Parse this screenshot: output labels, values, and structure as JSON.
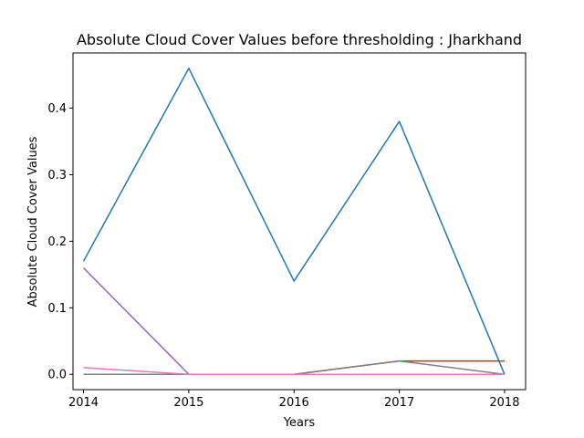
{
  "chart_data": {
    "type": "line",
    "title": "Absolute Cloud Cover Values before thresholding : Jharkhand",
    "xlabel": "Years",
    "ylabel": "Absolute Cloud Cover Values",
    "x": [
      2014,
      2015,
      2016,
      2017,
      2018
    ],
    "xlim": [
      2013.9,
      2018.2
    ],
    "ylim": [
      -0.023,
      0.483
    ],
    "yticks": [
      0.0,
      0.1,
      0.2,
      0.3,
      0.4
    ],
    "ytick_labels": [
      "0.0",
      "0.1",
      "0.2",
      "0.3",
      "0.4"
    ],
    "xtick_labels": [
      "2014",
      "2015",
      "2016",
      "2017",
      "2018"
    ],
    "grid": false,
    "legend": "none",
    "series": [
      {
        "color": "#1f77b4",
        "values": [
          0.17,
          0.46,
          0.14,
          0.38,
          0.0
        ]
      },
      {
        "color": "#ff7f0e",
        "values": [
          0.0,
          0.0,
          0.0,
          0.0,
          0.0
        ]
      },
      {
        "color": "#2ca02c",
        "values": [
          0.0,
          0.0,
          0.0,
          0.0,
          0.0
        ]
      },
      {
        "color": "#d62728",
        "values": [
          0.0,
          0.0,
          0.0,
          0.02,
          0.02
        ]
      },
      {
        "color": "#9467bd",
        "values": [
          0.16,
          0.0,
          0.0,
          0.0,
          0.0
        ]
      },
      {
        "color": "#8c564b",
        "values": [
          0.0,
          0.0,
          0.0,
          0.0,
          0.0
        ]
      },
      {
        "color": "#7f7f7f",
        "values": [
          0.0,
          0.0,
          0.0,
          0.02,
          0.0
        ]
      },
      {
        "color": "#e377c2",
        "values": [
          0.01,
          0.0,
          0.0,
          0.0,
          0.0
        ]
      }
    ]
  }
}
